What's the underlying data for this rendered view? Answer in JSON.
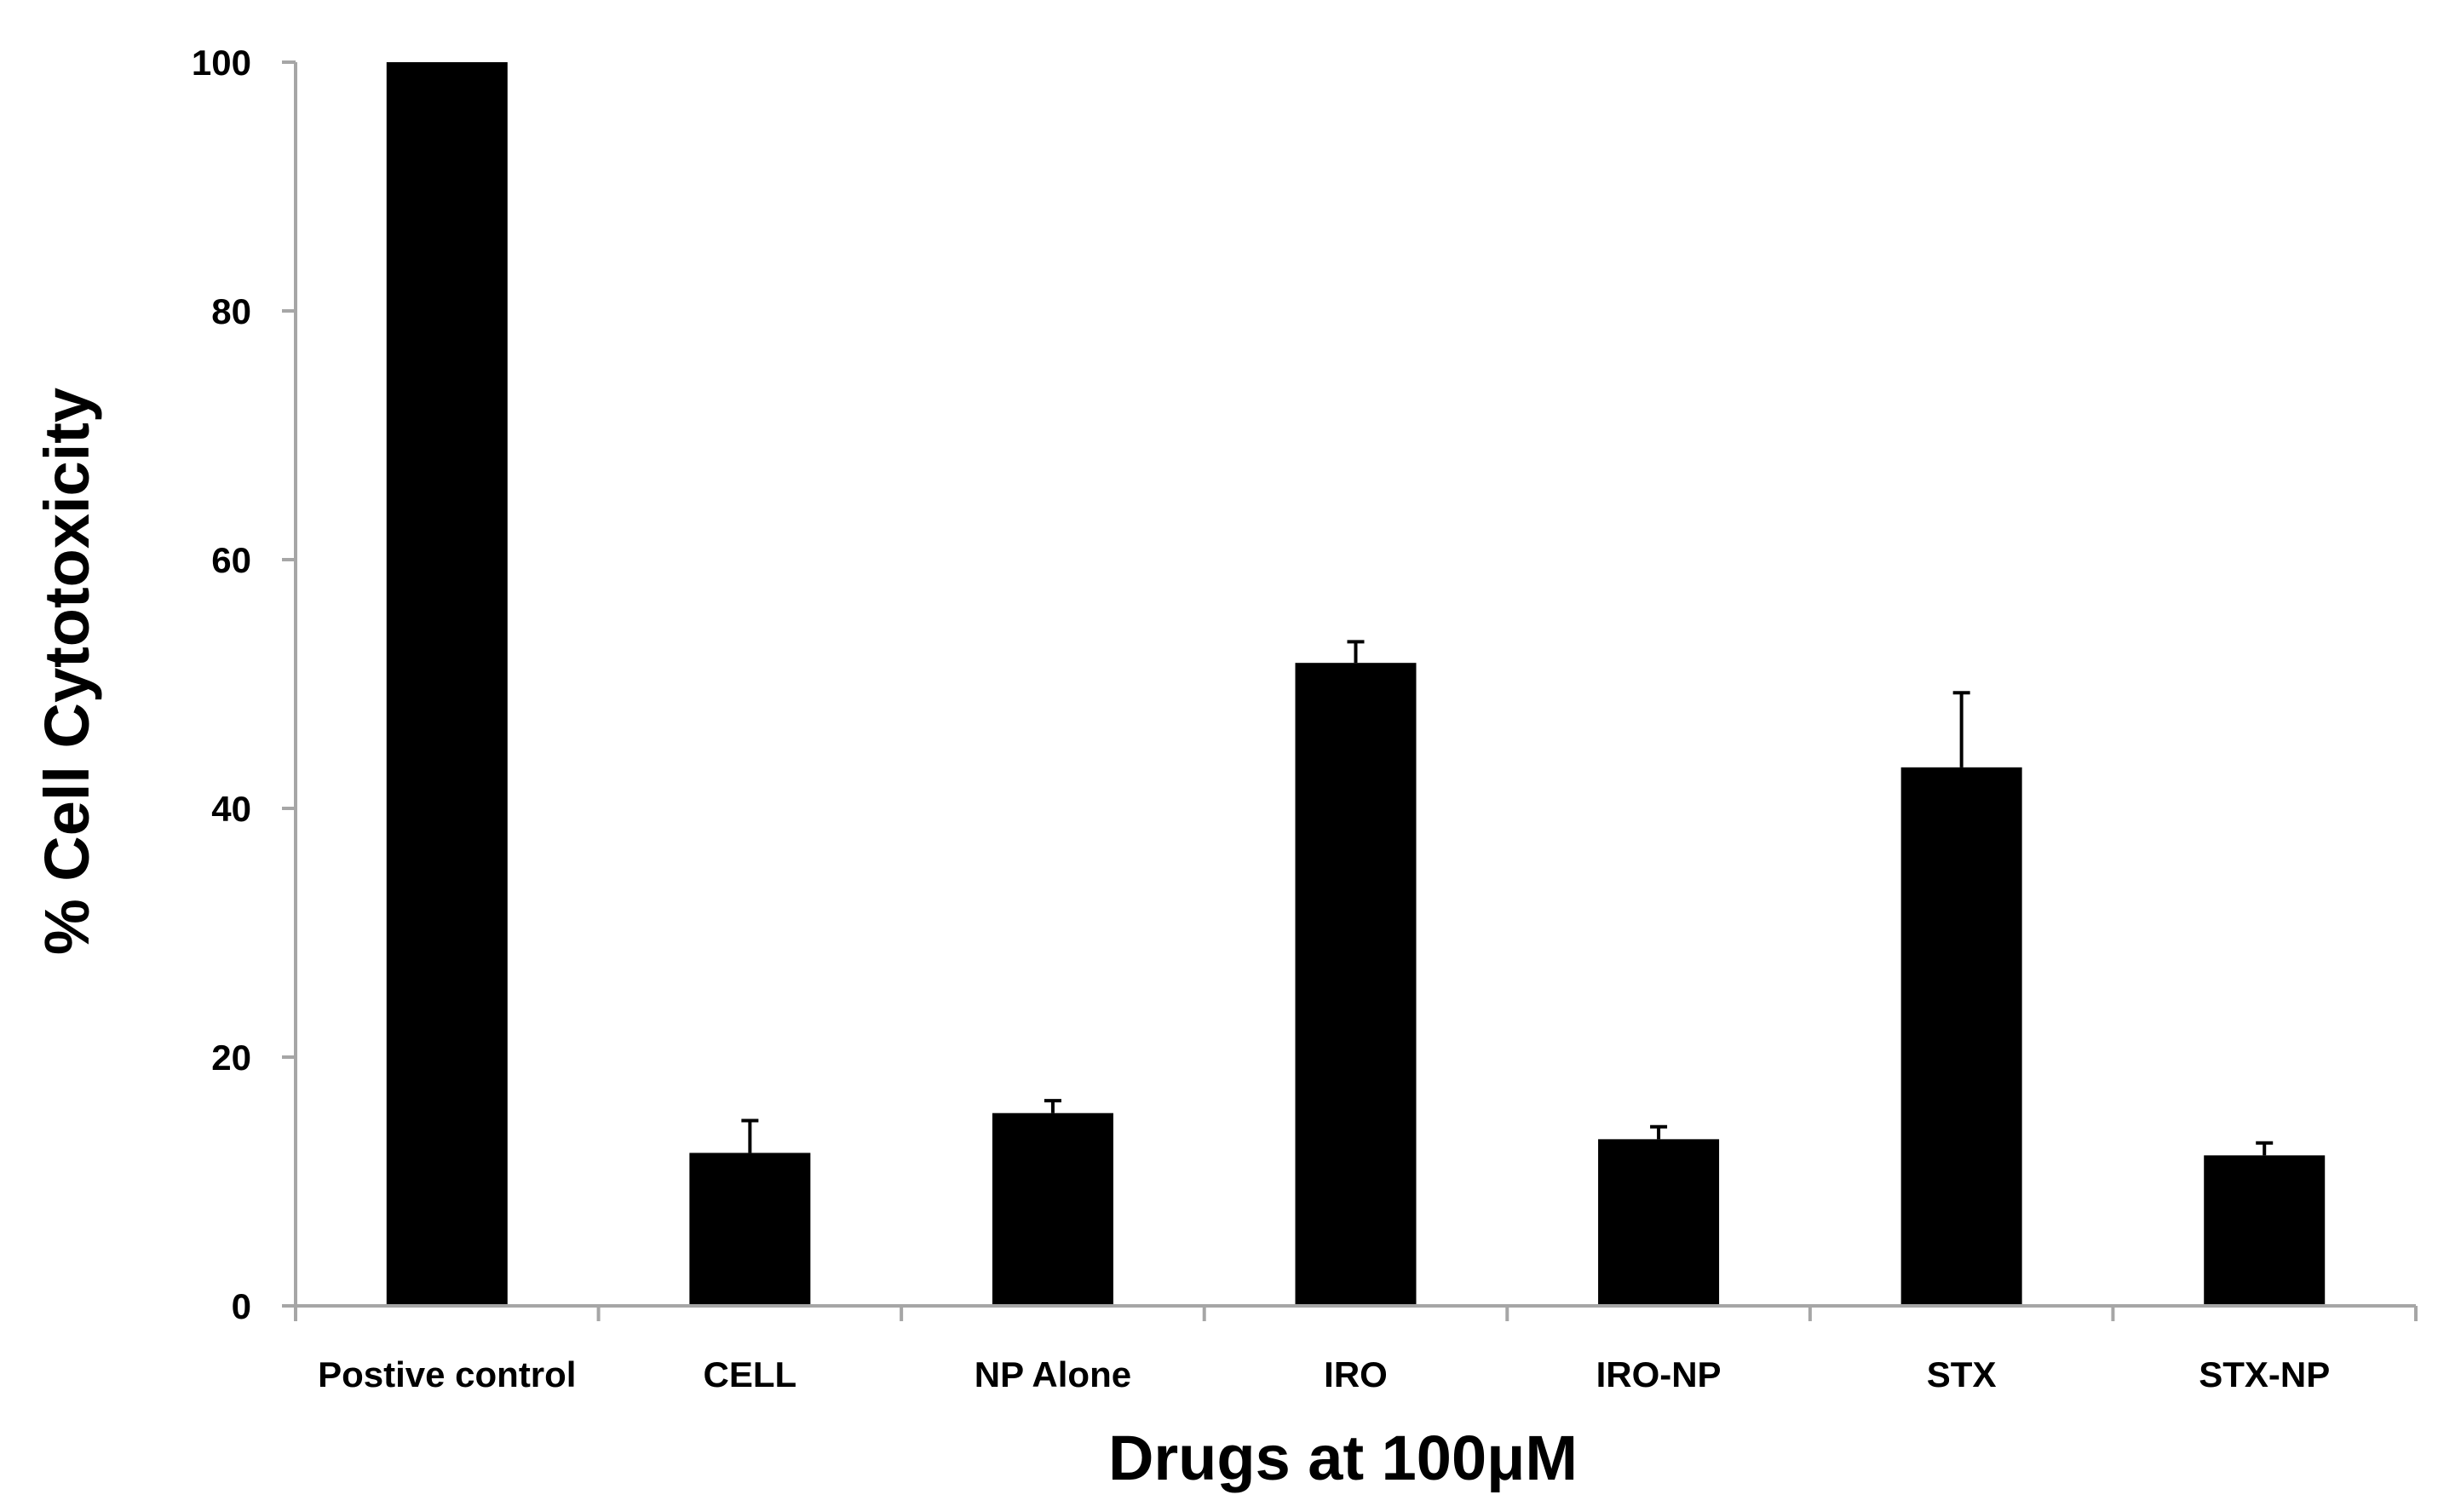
{
  "chart_data": {
    "type": "bar",
    "title": "",
    "xlabel": "Drugs at 100μM",
    "ylabel": "% Cell Cytotoxicity",
    "categories": [
      "Postive control",
      "CELL",
      "NP Alone",
      "IRO",
      "IRO-NP",
      "STX",
      "STX-NP"
    ],
    "series": [
      {
        "name": "% Cell Cytotoxicity",
        "values": [
          100,
          12.3,
          15.5,
          51.7,
          13.4,
          43.3,
          12.1
        ],
        "errors": [
          0,
          2.6,
          1.0,
          1.7,
          1.0,
          6.0,
          1.0
        ]
      }
    ],
    "ylim": [
      0,
      100
    ],
    "yticks": [
      0,
      20,
      40,
      60,
      80,
      100
    ],
    "grid": false,
    "legend": "none",
    "colors": {
      "bar": "#000000",
      "axis": "#a6a6a6",
      "text": "#000000"
    }
  }
}
